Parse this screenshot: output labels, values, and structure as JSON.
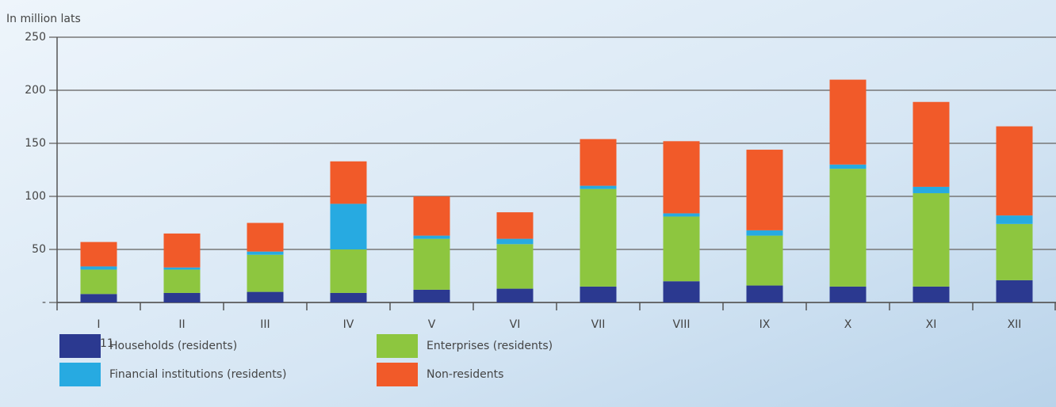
{
  "chart_data": {
    "type": "stacked_bar",
    "y_axis_label": "In million lats",
    "categories": [
      "I",
      "II",
      "III",
      "IV",
      "V",
      "VI",
      "VII",
      "VIII",
      "IX",
      "X",
      "XI",
      "XII"
    ],
    "year_label": "2011",
    "series": [
      {
        "name": "Households (residents)",
        "color": "#2b3990",
        "values": [
          8,
          9,
          10,
          9,
          12,
          13,
          15,
          20,
          16,
          15,
          15,
          21
        ]
      },
      {
        "name": "Enterprises (residents)",
        "color": "#8dc63f",
        "values": [
          23,
          22,
          35,
          41,
          48,
          42,
          92,
          61,
          47,
          111,
          88,
          53
        ]
      },
      {
        "name": "Financial institutions (residents)",
        "color": "#27aae1",
        "values": [
          3,
          2,
          3,
          43,
          3,
          5,
          3,
          3,
          5,
          4,
          6,
          8
        ]
      },
      {
        "name": "Non-residents",
        "color": "#f15a29",
        "values": [
          23,
          32,
          27,
          40,
          37,
          25,
          44,
          68,
          76,
          80,
          80,
          84
        ]
      }
    ],
    "ylim": [
      0,
      250
    ],
    "yticks": [
      {
        "value": 0,
        "label": "-"
      },
      50,
      100,
      150,
      200,
      250
    ],
    "grid": true
  }
}
